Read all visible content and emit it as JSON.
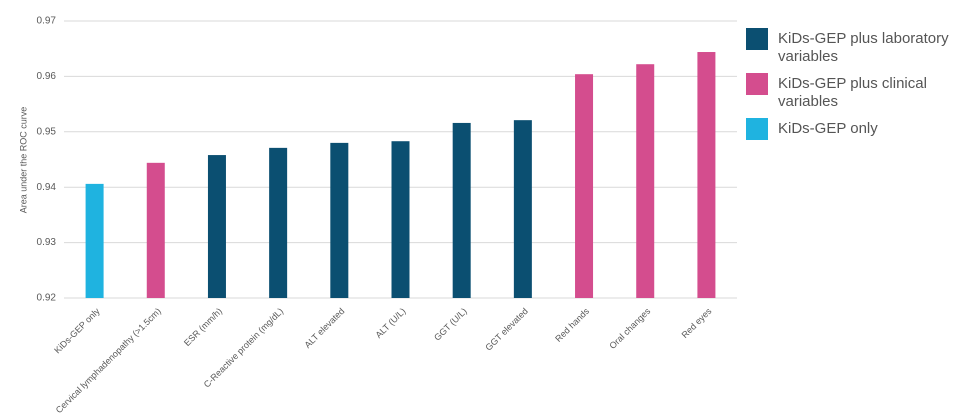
{
  "chart_data": {
    "type": "bar",
    "y_label": "Area under the ROC curve",
    "categories": [
      "KiDs-GEP only",
      "Cervical lymphadenopathy (>1.5cm)",
      "ESR (mm/h)",
      "C-Reactive protein (mg/dL)",
      "ALT elevated",
      "ALT (U/L)",
      "GGT (U/L)",
      "GGT elevated",
      "Red hands",
      "Oral changes",
      "Red eyes"
    ],
    "series": [
      {
        "name": "KiDs-GEP plus laboratory variables",
        "color": "#0b4f71",
        "values": [
          null,
          null,
          0.9458,
          0.9471,
          0.948,
          0.9483,
          0.9516,
          0.9521,
          null,
          null,
          null
        ]
      },
      {
        "name": "KiDs-GEP plus clinical variables",
        "color": "#d44d8e",
        "values": [
          null,
          0.9444,
          null,
          null,
          null,
          null,
          null,
          null,
          0.9604,
          0.9622,
          0.9644
        ]
      },
      {
        "name": "KiDs-GEP only",
        "color": "#1fb3e0",
        "values": [
          0.9406,
          null,
          null,
          null,
          null,
          null,
          null,
          null,
          null,
          null,
          null
        ]
      }
    ],
    "ylim": [
      0.92,
      0.97
    ],
    "yticks": [
      0.92,
      0.93,
      0.94,
      0.95,
      0.96,
      0.97
    ],
    "grid": true,
    "legend": "right"
  }
}
